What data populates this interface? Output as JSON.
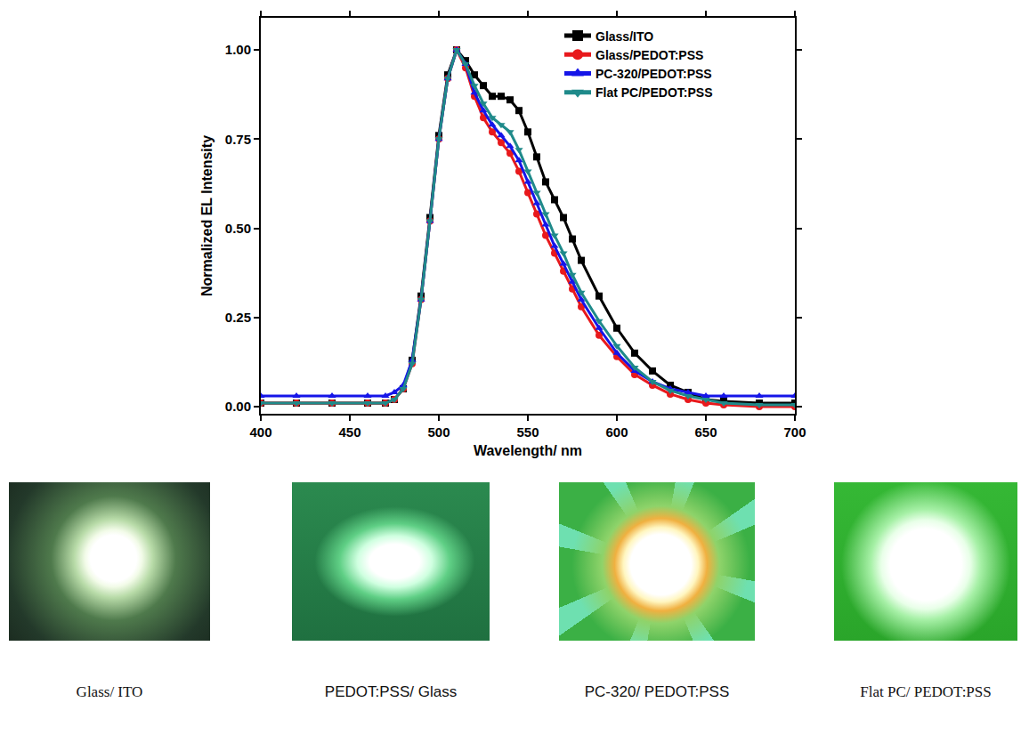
{
  "chart_data": {
    "type": "line",
    "x_label": "Wavelength/ nm",
    "y_label": "Normalized EL Intensity",
    "x": [
      400,
      420,
      440,
      460,
      470,
      475,
      480,
      485,
      490,
      495,
      500,
      505,
      510,
      515,
      520,
      525,
      530,
      535,
      540,
      545,
      550,
      555,
      560,
      565,
      570,
      575,
      580,
      590,
      600,
      610,
      620,
      630,
      640,
      650,
      660,
      680,
      700
    ],
    "series": [
      {
        "name": "Glass/ITO",
        "color": "#000000",
        "marker": "square",
        "values": [
          0.01,
          0.01,
          0.01,
          0.01,
          0.01,
          0.02,
          0.05,
          0.13,
          0.31,
          0.53,
          0.76,
          0.93,
          1.0,
          0.97,
          0.93,
          0.9,
          0.87,
          0.87,
          0.86,
          0.83,
          0.77,
          0.7,
          0.63,
          0.58,
          0.53,
          0.47,
          0.41,
          0.31,
          0.22,
          0.15,
          0.1,
          0.06,
          0.04,
          0.02,
          0.015,
          0.01,
          0.01
        ]
      },
      {
        "name": "Glass/PEDOT:PSS",
        "color": "#e8191c",
        "marker": "circle",
        "values": [
          0.01,
          0.01,
          0.01,
          0.01,
          0.01,
          0.02,
          0.05,
          0.12,
          0.3,
          0.52,
          0.75,
          0.92,
          1.0,
          0.95,
          0.87,
          0.81,
          0.77,
          0.74,
          0.71,
          0.66,
          0.6,
          0.54,
          0.48,
          0.43,
          0.38,
          0.33,
          0.28,
          0.2,
          0.14,
          0.09,
          0.06,
          0.035,
          0.02,
          0.01,
          0.005,
          0.0,
          0.0
        ]
      },
      {
        "name": "PC-320/PEDOT:PSS",
        "color": "#1515e8",
        "marker": "triangle-up",
        "values": [
          0.03,
          0.03,
          0.03,
          0.03,
          0.03,
          0.04,
          0.06,
          0.13,
          0.3,
          0.52,
          0.75,
          0.92,
          1.0,
          0.96,
          0.88,
          0.83,
          0.79,
          0.76,
          0.73,
          0.69,
          0.63,
          0.57,
          0.51,
          0.45,
          0.4,
          0.35,
          0.3,
          0.22,
          0.15,
          0.1,
          0.07,
          0.05,
          0.04,
          0.03,
          0.03,
          0.03,
          0.03
        ]
      },
      {
        "name": "Flat PC/PEDOT:PSS",
        "color": "#1f8a8a",
        "marker": "triangle-down",
        "values": [
          0.01,
          0.01,
          0.01,
          0.01,
          0.01,
          0.02,
          0.05,
          0.12,
          0.3,
          0.52,
          0.75,
          0.92,
          1.0,
          0.96,
          0.9,
          0.85,
          0.81,
          0.79,
          0.77,
          0.72,
          0.66,
          0.6,
          0.54,
          0.48,
          0.43,
          0.37,
          0.32,
          0.24,
          0.17,
          0.11,
          0.07,
          0.045,
          0.03,
          0.02,
          0.01,
          0.005,
          0.005
        ]
      }
    ],
    "xlim": [
      400,
      700
    ],
    "xticks": [
      400,
      450,
      500,
      550,
      600,
      650,
      700
    ],
    "ylim": [
      -0.02,
      1.09
    ],
    "yticks": [
      {
        "value": 0,
        "label": "0.00"
      },
      {
        "value": 0.25,
        "label": "0.25"
      },
      {
        "value": 0.5,
        "label": "0.50"
      },
      {
        "value": 0.75,
        "label": "0.75"
      },
      {
        "value": 1,
        "label": "1.00"
      }
    ],
    "grid": false,
    "legend": "upper right"
  },
  "photos": [
    {
      "caption": "Glass/ ITO"
    },
    {
      "caption": "PEDOT:PSS/ Glass"
    },
    {
      "caption": "PC-320/ PEDOT:PSS"
    },
    {
      "caption": "Flat PC/ PEDOT:PSS"
    }
  ]
}
